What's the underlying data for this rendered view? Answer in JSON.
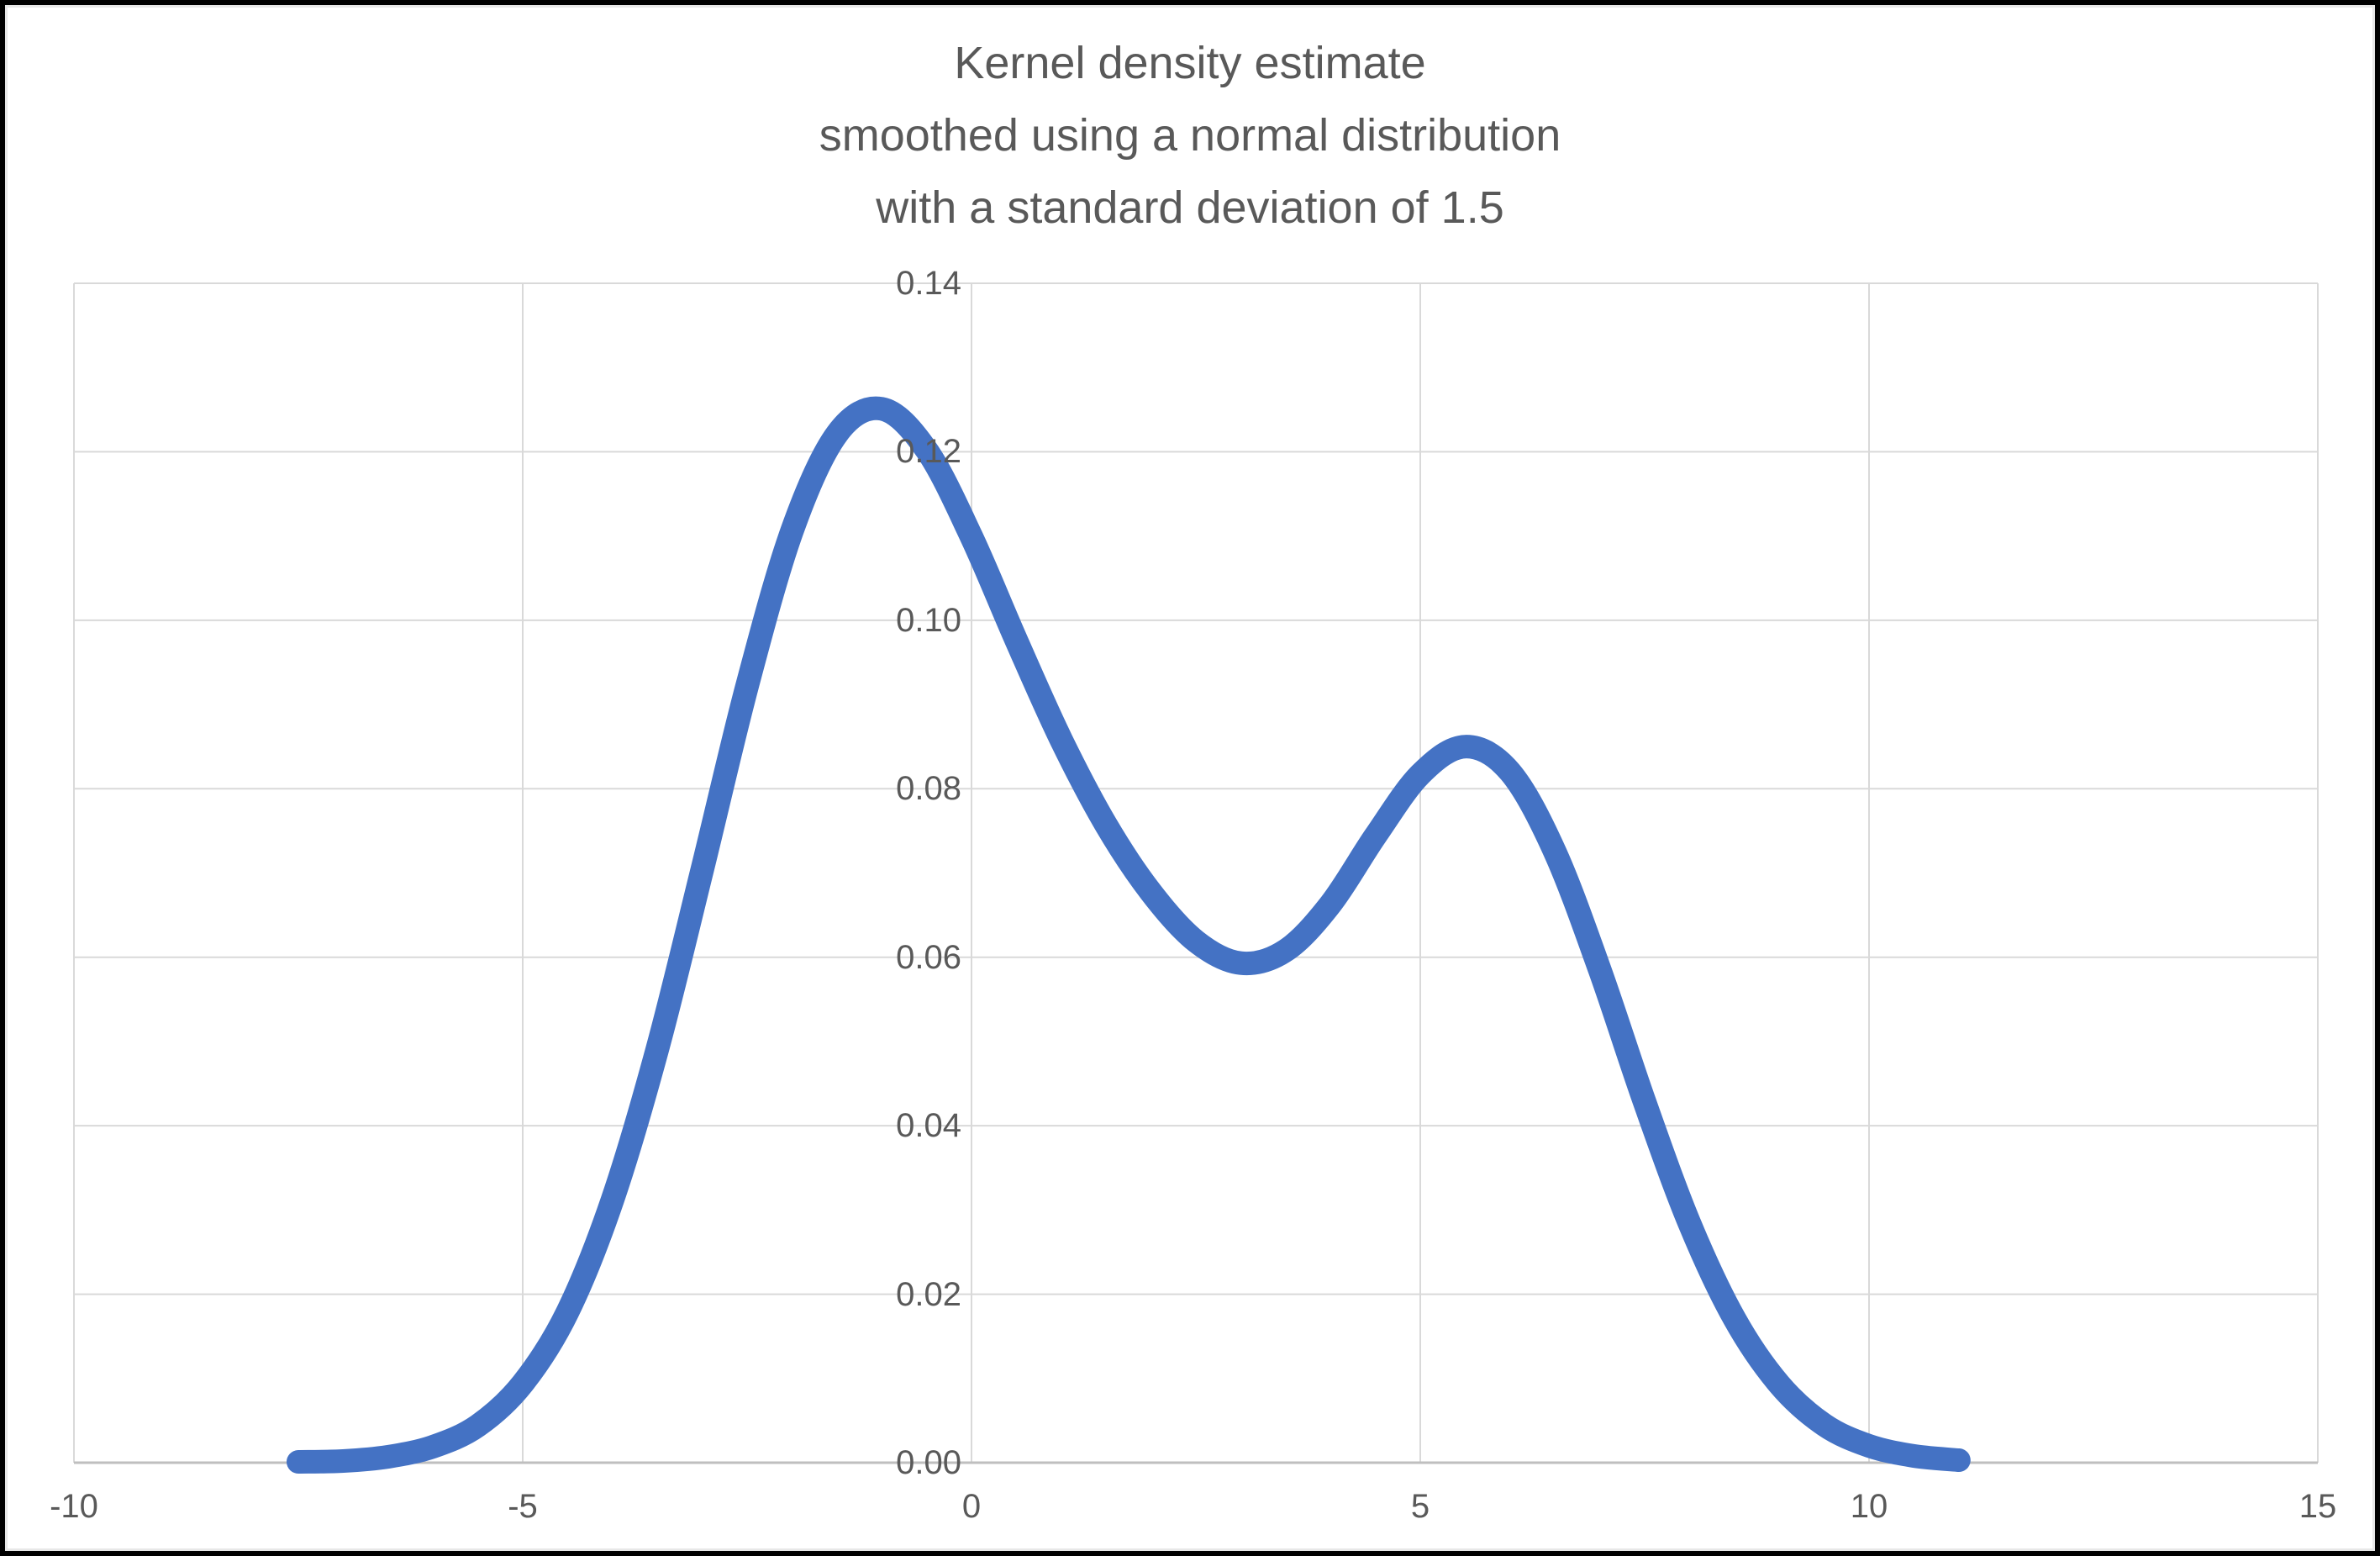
{
  "title": {
    "lines": [
      "Kernel density estimate",
      "smoothed using a normal distribution",
      "with a standard deviation of 1.5"
    ]
  },
  "colors": {
    "background": "#FFFFFF",
    "frame": "#000000",
    "inner_edge": "#E8E8E8",
    "gridline": "#D9D9D9",
    "axis_line": "#BFBFBF",
    "text": "#595959",
    "line": "#4472C4"
  },
  "chart_data": {
    "type": "line",
    "title": "Kernel density estimate smoothed using a normal distribution with a standard deviation of 1.5",
    "xlabel": "",
    "ylabel": "",
    "xlim": [
      -10,
      15
    ],
    "ylim": [
      0,
      0.14
    ],
    "grid": true,
    "legend": false,
    "x_ticks": [
      {
        "value": -10,
        "label": "-10"
      },
      {
        "value": -5,
        "label": "-5"
      },
      {
        "value": 0,
        "label": "0"
      },
      {
        "value": 5,
        "label": "5"
      },
      {
        "value": 10,
        "label": "10"
      },
      {
        "value": 15,
        "label": "15"
      }
    ],
    "y_ticks": [
      {
        "value": 0.0,
        "label": "0.00"
      },
      {
        "value": 0.02,
        "label": "0.02"
      },
      {
        "value": 0.04,
        "label": "0.04"
      },
      {
        "value": 0.06,
        "label": "0.06"
      },
      {
        "value": 0.08,
        "label": "0.08"
      },
      {
        "value": 0.1,
        "label": "0.10"
      },
      {
        "value": 0.12,
        "label": "0.12"
      },
      {
        "value": 0.14,
        "label": "0.14"
      }
    ],
    "series": [
      {
        "name": "Kernel density estimate",
        "color": "#4472C4",
        "points": [
          [
            -7.5,
            0.0001
          ],
          [
            -7.0,
            0.0002
          ],
          [
            -6.5,
            0.0007
          ],
          [
            -6.0,
            0.0019
          ],
          [
            -5.5,
            0.0044
          ],
          [
            -5.0,
            0.0094
          ],
          [
            -4.5,
            0.0179
          ],
          [
            -4.0,
            0.0312
          ],
          [
            -3.5,
            0.0491
          ],
          [
            -3.0,
            0.0704
          ],
          [
            -2.5,
            0.0922
          ],
          [
            -2.0,
            0.1106
          ],
          [
            -1.5,
            0.1221
          ],
          [
            -1.0,
            0.1251
          ],
          [
            -0.5,
            0.1202
          ],
          [
            0.0,
            0.1099
          ],
          [
            0.5,
            0.0976
          ],
          [
            1.0,
            0.0858
          ],
          [
            1.5,
            0.0757
          ],
          [
            2.0,
            0.0677
          ],
          [
            2.5,
            0.0619
          ],
          [
            3.0,
            0.0593
          ],
          [
            3.5,
            0.0608
          ],
          [
            4.0,
            0.0663
          ],
          [
            4.5,
            0.0744
          ],
          [
            5.0,
            0.0817
          ],
          [
            5.5,
            0.085
          ],
          [
            6.0,
            0.082
          ],
          [
            6.5,
            0.0725
          ],
          [
            7.0,
            0.0585
          ],
          [
            7.5,
            0.0428
          ],
          [
            8.0,
            0.0284
          ],
          [
            8.5,
            0.0171
          ],
          [
            9.0,
            0.0093
          ],
          [
            9.5,
            0.0045
          ],
          [
            10.0,
            0.002
          ],
          [
            10.5,
            0.0008
          ],
          [
            11.0,
            0.0003
          ]
        ]
      }
    ]
  }
}
